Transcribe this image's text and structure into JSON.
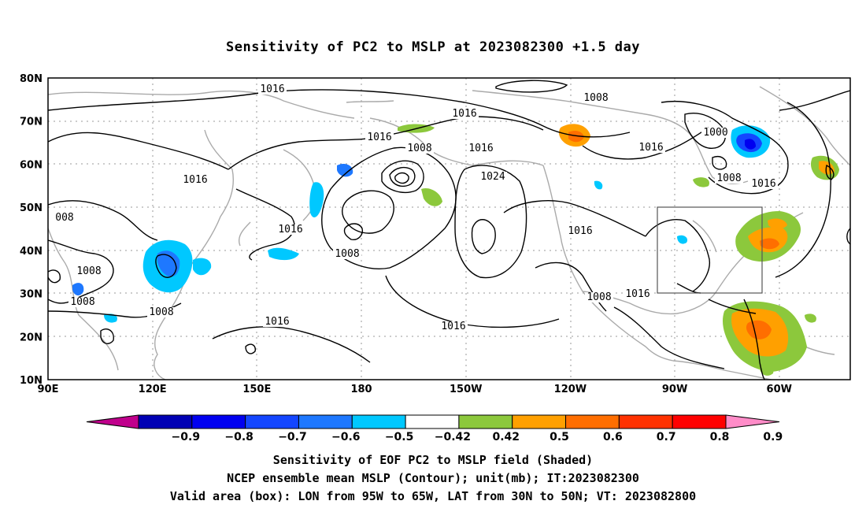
{
  "title": "Sensitivity of PC2 to MSLP at 2023082300 +1.5 day",
  "map": {
    "lon_labels": [
      "90E",
      "120E",
      "150E",
      "180",
      "150W",
      "120W",
      "90W",
      "60W"
    ],
    "lat_labels": [
      "80N",
      "70N",
      "60N",
      "50N",
      "40N",
      "30N",
      "20N",
      "10N"
    ],
    "contour_labels": [
      "1016",
      "1016",
      "1008",
      "1016",
      "1008",
      "1016",
      "1016",
      "1024",
      "1000",
      "1016",
      "1008",
      "1016",
      "1016",
      "008",
      "1008",
      "1008",
      "1016",
      "1008",
      "1008",
      "1016",
      "1016",
      "1008",
      "1016"
    ],
    "box": {
      "lon_from": "95W",
      "lon_to": "65W",
      "lat_from": "30N",
      "lat_to": "50N"
    }
  },
  "colorbar": {
    "labels": [
      "-0.9",
      "-0.8",
      "-0.7",
      "-0.6",
      "-0.5",
      "-0.42",
      "0.42",
      "0.5",
      "0.6",
      "0.7",
      "0.8",
      "0.9"
    ],
    "colors": [
      "#c0008c",
      "#0000b4",
      "#0000f0",
      "#1446ff",
      "#1e78ff",
      "#00c8ff",
      "#ffffff",
      "#8cc83c",
      "#ffa000",
      "#ff6e00",
      "#ff3200",
      "#ff0000",
      "#ff8cc8"
    ]
  },
  "captions": [
    "Sensitivity of EOF PC2 to MSLP field (Shaded)",
    "NCEP ensemble mean MSLP (Contour); unit(mb); IT:2023082300",
    "Valid area (box): LON from 95W to 65W, LAT from 30N to 50N; VT: 2023082800"
  ]
}
